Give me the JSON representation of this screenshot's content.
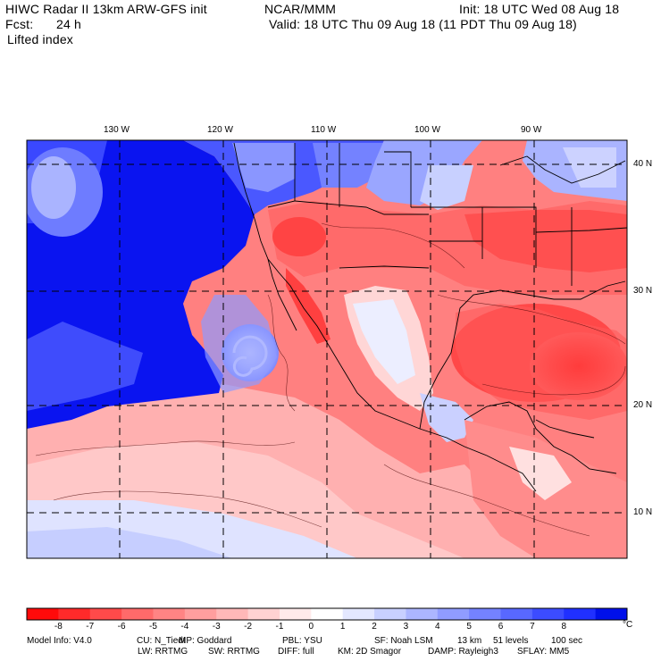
{
  "header": {
    "title_left": "HIWC Radar II 13km ARW-GFS init",
    "org": "NCAR/MMM",
    "init": "Init: 18 UTC Wed 08 Aug 18",
    "fcst_label": "Fcst:",
    "fcst_value": "24 h",
    "valid": "Valid: 18 UTC Thu 09 Aug 18 (11 PDT Thu 09 Aug 18)",
    "field": "Lifted index"
  },
  "map": {
    "lon_labels": [
      "130 W",
      "120 W",
      "110 W",
      "100 W",
      "90 W"
    ],
    "lat_labels": [
      "40 N",
      "30 N",
      "20 N",
      "10 N"
    ]
  },
  "colorbar": {
    "colors": [
      "#ff0a0a",
      "#ff2a2a",
      "#ff4a4a",
      "#ff6a6a",
      "#ff8484",
      "#ff9e9e",
      "#ffb8b8",
      "#ffd2d2",
      "#ffeaea",
      "#ffffff",
      "#e4e8ff",
      "#c8d0ff",
      "#acb6ff",
      "#909cff",
      "#7482ff",
      "#5868ff",
      "#3c4cff",
      "#2030ff",
      "#0010ea"
    ],
    "tick_labels": [
      "-8",
      "-7",
      "-6",
      "-5",
      "-4",
      "-3",
      "-2",
      "-1",
      "0",
      "1",
      "2",
      "3",
      "4",
      "5",
      "6",
      "7",
      "8"
    ],
    "unit": "°C"
  },
  "footer": {
    "line1": [
      "Model Info: V4.0",
      "CU: N_Tiedt",
      "MP: Goddard",
      "PBL: YSU",
      "SF: Noah LSM",
      "13 km",
      "51 levels",
      "100 sec"
    ],
    "line2": [
      "LW: RRTMG",
      "SW: RRTMG",
      "DIFF: full",
      "KM: 2D Smagor",
      "DAMP: Rayleigh3",
      "SFLAY: MM5"
    ]
  }
}
